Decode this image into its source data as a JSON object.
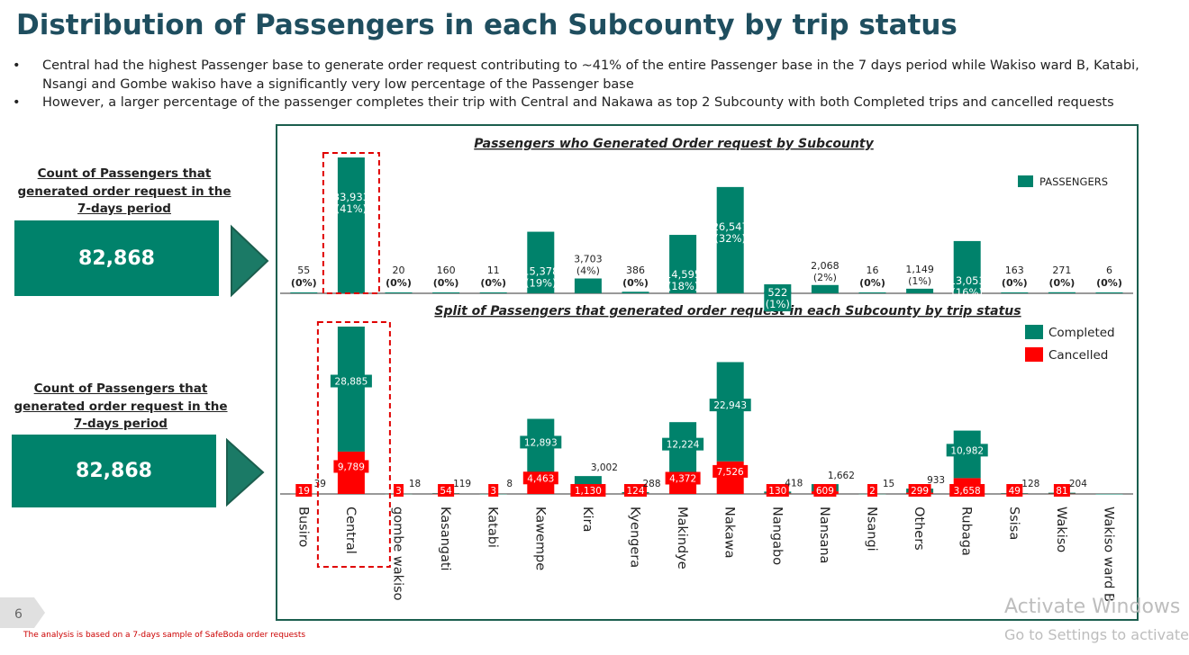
{
  "title": "Distribution of Passengers in each Subcounty by trip status",
  "bullets": [
    "Central had the highest Passenger base to generate order request contributing to ~41% of the entire Passenger base in the 7 days period while Wakiso ward B, Katabi, Nsangi and Gombe wakiso have a significantly very low percentage of the Passenger base",
    "However, a larger percentage of the passenger completes their trip with Central and Nakawa as top 2 Subcounty with both Completed trips and cancelled requests"
  ],
  "kpis": [
    {
      "label": "Count of Passengers that generated order request in the 7-days period",
      "value": "82,868"
    },
    {
      "label": "Count of Passengers that generated order request in the 7-days period",
      "value": "82,868"
    }
  ],
  "page_number": "6",
  "footnote": "The analysis  is based on  a 7-days sample of SafeBoda order requests",
  "watermark": {
    "line1": "Activate Windows",
    "line2": "Go to Settings to activate"
  },
  "colors": {
    "teal": "#00826b",
    "red": "#ff0000",
    "dark_teal": "#1b5e4e",
    "highlight": "#e00000"
  },
  "chart_data": [
    {
      "type": "bar",
      "title": "Passengers who Generated Order request by Subcounty",
      "legend": [
        "PASSENGERS"
      ],
      "legend_position": "top-right",
      "categories": [
        "Busiro",
        "Central",
        "gombe wakiso",
        "Kasangati",
        "Katabi",
        "Kawempe",
        "Kira",
        "Kyengera",
        "Makindye",
        "Nakawa",
        "Nangabo",
        "Nansana",
        "Nsangi",
        "Others",
        "Rubaga",
        "Ssisa",
        "Wakiso",
        "Wakiso ward B"
      ],
      "values": [
        55,
        33933,
        20,
        160,
        11,
        15378,
        3703,
        386,
        14595,
        26547,
        522,
        2068,
        16,
        1149,
        13053,
        163,
        271,
        6
      ],
      "value_labels": [
        "55",
        "33,933",
        "20",
        "160",
        "11",
        "15,378",
        "3,703",
        "386",
        "14,595",
        "26,547",
        "522",
        "2,068",
        "16",
        "1,149",
        "13,053",
        "163",
        "271",
        "6"
      ],
      "percent_labels": [
        "(0%)",
        "(41%)",
        "(0%)",
        "(0%)",
        "(0%)",
        "(19%)",
        "(4%)",
        "(0%)",
        "(18%)",
        "(32%)",
        "(1%)",
        "(2%)",
        "(0%)",
        "(1%)",
        "(16%)",
        "(0%)",
        "(0%)",
        "(0%)"
      ],
      "highlight": "Central",
      "ylim": [
        0,
        35000
      ]
    },
    {
      "type": "bar",
      "stacked": true,
      "title": "Split of Passengers that generated order request in each Subcounty by trip status",
      "legend_position": "top-right",
      "categories": [
        "Busiro",
        "Central",
        "gombe wakiso",
        "Kasangati",
        "Katabi",
        "Kawempe",
        "Kira",
        "Kyengera",
        "Makindye",
        "Nakawa",
        "Nangabo",
        "Nansana",
        "Nsangi",
        "Others",
        "Rubaga",
        "Ssisa",
        "Wakiso",
        "Wakiso ward B"
      ],
      "series": [
        {
          "name": "Cancelled",
          "values": [
            19,
            9789,
            3,
            54,
            3,
            4463,
            1130,
            124,
            4372,
            7526,
            130,
            609,
            2,
            299,
            3658,
            49,
            81,
            0
          ],
          "labels": [
            "19",
            "9,789",
            "3",
            "54",
            "3",
            "4,463",
            "1,130",
            "124",
            "4,372",
            "7,526",
            "130",
            "609",
            "2",
            "299",
            "3,658",
            "49",
            "81",
            ""
          ]
        },
        {
          "name": "Completed",
          "values": [
            39,
            28885,
            18,
            119,
            8,
            12893,
            3002,
            288,
            12224,
            22943,
            418,
            1662,
            15,
            933,
            10982,
            128,
            204,
            6
          ],
          "labels": [
            "39",
            "28,885",
            "18",
            "119",
            "8",
            "12,893",
            "3,002",
            "288",
            "12,224",
            "22,943",
            "418",
            "1,662",
            "15",
            "933",
            "10,982",
            "128",
            "204",
            ""
          ]
        }
      ],
      "highlight": "Central",
      "ylim": [
        0,
        39000
      ]
    }
  ]
}
